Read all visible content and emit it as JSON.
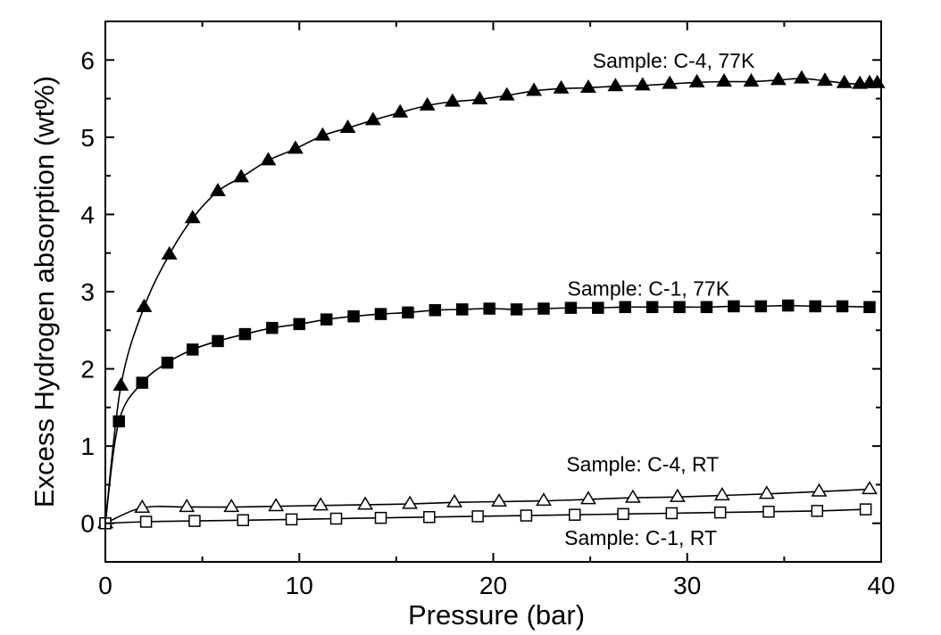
{
  "chart_data": {
    "type": "scatter",
    "xlabel": "Pressure (bar)",
    "ylabel": "Excess Hydrogen absorption (wt%)",
    "xlim": [
      0,
      40
    ],
    "ylim": [
      -0.5,
      6.5
    ],
    "xticks": [
      0,
      10,
      20,
      30,
      40
    ],
    "yticks": [
      0,
      1,
      2,
      3,
      4,
      5,
      6
    ],
    "grid": false,
    "series": [
      {
        "name": "Sample: C-4, 77K",
        "marker": "filled-triangle",
        "color": "#000000",
        "x": [
          0,
          0.8,
          2.0,
          3.3,
          4.5,
          5.8,
          7.0,
          8.4,
          9.8,
          11.2,
          12.5,
          13.8,
          15.2,
          16.6,
          17.9,
          19.3,
          20.7,
          22.1,
          23.5,
          24.9,
          26.3,
          27.7,
          29.1,
          30.5,
          31.9,
          33.3,
          34.7,
          35.9,
          37.1,
          38.1,
          38.9,
          39.4,
          39.8
        ],
        "y": [
          0,
          1.78,
          2.8,
          3.48,
          3.95,
          4.3,
          4.48,
          4.7,
          4.85,
          5.02,
          5.12,
          5.22,
          5.32,
          5.41,
          5.46,
          5.49,
          5.54,
          5.6,
          5.63,
          5.64,
          5.66,
          5.67,
          5.69,
          5.71,
          5.72,
          5.72,
          5.74,
          5.76,
          5.73,
          5.7,
          5.69,
          5.7,
          5.7
        ]
      },
      {
        "name": "Sample: C-1, 77K",
        "marker": "filled-square",
        "color": "#000000",
        "x": [
          0,
          0.7,
          1.9,
          3.2,
          4.5,
          5.8,
          7.2,
          8.6,
          10.0,
          11.4,
          12.8,
          14.2,
          15.6,
          17.0,
          18.4,
          19.8,
          21.2,
          22.6,
          24.0,
          25.4,
          26.8,
          28.2,
          29.6,
          31.0,
          32.4,
          33.8,
          35.2,
          36.6,
          38.0,
          39.4
        ],
        "y": [
          0,
          1.32,
          1.82,
          2.08,
          2.25,
          2.36,
          2.45,
          2.53,
          2.58,
          2.64,
          2.68,
          2.71,
          2.73,
          2.76,
          2.77,
          2.78,
          2.77,
          2.78,
          2.79,
          2.79,
          2.8,
          2.8,
          2.8,
          2.8,
          2.81,
          2.81,
          2.82,
          2.81,
          2.81,
          2.8
        ]
      },
      {
        "name": "Sample: C-4, RT",
        "marker": "open-triangle",
        "color": "#000000",
        "x": [
          0,
          1.9,
          4.2,
          6.5,
          8.8,
          11.1,
          13.4,
          15.7,
          18.0,
          20.3,
          22.6,
          24.9,
          27.2,
          29.5,
          31.8,
          34.1,
          36.8,
          39.4
        ],
        "y": [
          0,
          0.2,
          0.21,
          0.21,
          0.22,
          0.23,
          0.24,
          0.25,
          0.27,
          0.28,
          0.29,
          0.31,
          0.33,
          0.34,
          0.36,
          0.38,
          0.41,
          0.44
        ]
      },
      {
        "name": "Sample: C-1, RT",
        "marker": "open-square",
        "color": "#000000",
        "x": [
          0,
          2.1,
          4.6,
          7.1,
          9.6,
          11.9,
          14.2,
          16.7,
          19.2,
          21.7,
          24.2,
          26.7,
          29.2,
          31.7,
          34.2,
          36.7,
          39.2
        ],
        "y": [
          0,
          0.02,
          0.03,
          0.04,
          0.05,
          0.06,
          0.07,
          0.08,
          0.09,
          0.1,
          0.11,
          0.12,
          0.13,
          0.14,
          0.15,
          0.16,
          0.18
        ]
      }
    ],
    "annotations": [
      {
        "id": "c4-77k",
        "text": "Sample: C-4, 77K",
        "at": [
          29.3,
          5.9
        ]
      },
      {
        "id": "c1-77k",
        "text": "Sample: C-1, 77K",
        "at": [
          28.0,
          2.95
        ]
      },
      {
        "id": "c4-rt",
        "text": "Sample: C-4, RT",
        "at": [
          27.7,
          0.67
        ]
      },
      {
        "id": "c1-rt",
        "text": "Sample: C-1, RT",
        "at": [
          27.6,
          -0.28
        ]
      }
    ]
  }
}
